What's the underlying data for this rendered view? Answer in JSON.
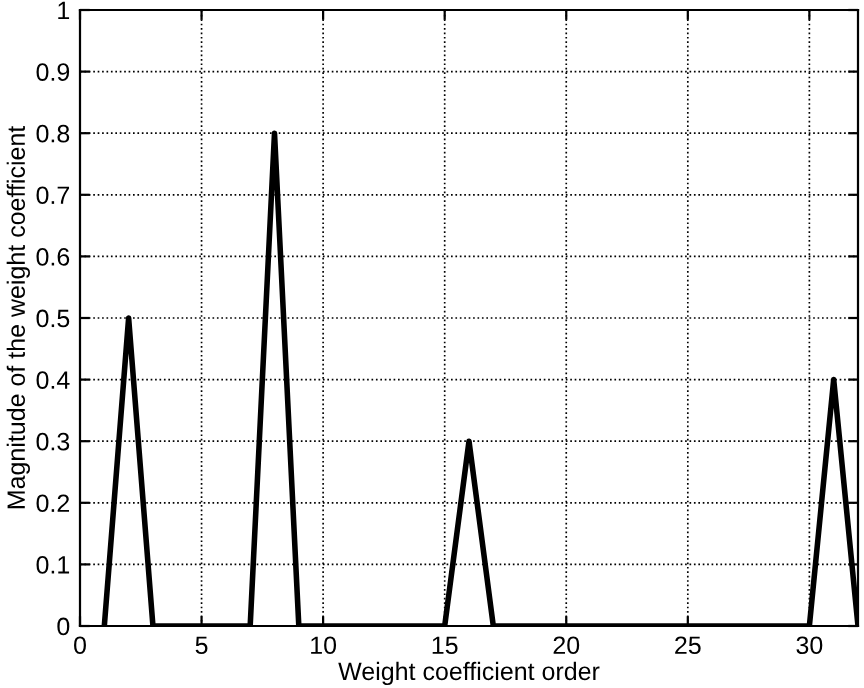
{
  "chart_data": {
    "type": "line",
    "xlabel": "Weight coefficient order",
    "ylabel": "Magnitude of the weight coefficient",
    "x": [
      1,
      2,
      3,
      4,
      5,
      6,
      7,
      8,
      9,
      10,
      11,
      12,
      13,
      14,
      15,
      16,
      17,
      18,
      19,
      20,
      21,
      22,
      23,
      24,
      25,
      26,
      27,
      28,
      29,
      30,
      31,
      32
    ],
    "series": [
      {
        "color": "#000000",
        "values": [
          0,
          0.5,
          0,
          0,
          0,
          0,
          0,
          0.8,
          0,
          0,
          0,
          0,
          0,
          0,
          0,
          0.3,
          0,
          0,
          0,
          0,
          0,
          0,
          0,
          0,
          0,
          0,
          0,
          0,
          0,
          0,
          0.4,
          0
        ]
      }
    ],
    "xlim": [
      0,
      32
    ],
    "xticks": [
      0,
      5,
      10,
      15,
      20,
      25,
      30
    ],
    "ylim": [
      0,
      1
    ],
    "yticks": [
      0,
      0.1,
      0.2,
      0.3,
      0.4,
      0.5,
      0.6,
      0.7,
      0.8,
      0.9,
      1
    ],
    "grid": true,
    "line_style": "solid",
    "marker": "none"
  }
}
